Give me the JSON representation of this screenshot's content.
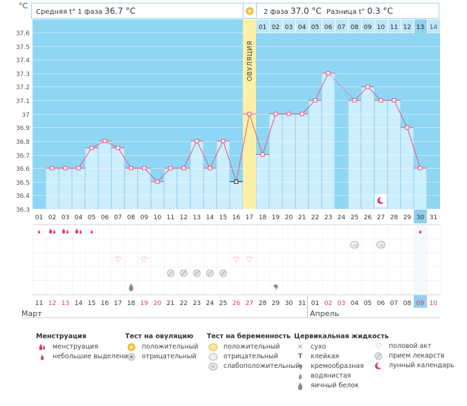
{
  "header": {
    "left_label": "Средняя t° 1 фаза",
    "left_value": "36.7 °C",
    "right_label": "2 фаза",
    "right_value": "37.0 °C",
    "diff_label": "Разница t°",
    "diff_value": "0.3 °C",
    "unit": "°C"
  },
  "ovulation_label": "ОВУЛЯЦИЯ",
  "colors": {
    "sky": "#8fd6f5",
    "bar": "#cdeefd",
    "bar_edge": "#a9dbf3",
    "ovulation": "#fbf0a6",
    "line": "#e0567f",
    "pink": "#e0356f",
    "selected": "#8fd0ee"
  },
  "chart_data": {
    "type": "line",
    "ylim": [
      36.3,
      37.6
    ],
    "yticks": [
      "37.6",
      "37.5",
      "37.4",
      "37.3",
      "37.2",
      "37.1",
      "37",
      "36.9",
      "36.8",
      "36.7",
      "36.6",
      "36.5",
      "36.4",
      "36.3"
    ],
    "cycle_days": [
      "01",
      "02",
      "03",
      "04",
      "05",
      "06",
      "07",
      "08",
      "09",
      "10",
      "11",
      "12",
      "13",
      "14",
      "15",
      "16",
      "17",
      "18",
      "19",
      "20",
      "21",
      "22",
      "23",
      "24",
      "25",
      "26",
      "27",
      "28",
      "29",
      "30",
      "31"
    ],
    "phase2_days": [
      "01",
      "02",
      "03",
      "04",
      "05",
      "06",
      "07",
      "08",
      "09",
      "10",
      "11",
      "12",
      "13",
      "14"
    ],
    "temperatures": [
      null,
      36.6,
      36.6,
      36.6,
      36.75,
      36.8,
      36.75,
      36.6,
      36.6,
      36.5,
      36.6,
      36.6,
      36.8,
      36.6,
      36.8,
      36.5,
      37.0,
      36.7,
      37.0,
      37.0,
      37.0,
      37.1,
      37.3,
      null,
      37.1,
      37.2,
      37.1,
      37.1,
      36.9,
      36.6,
      null
    ],
    "dashed_gap": [
      23,
      25
    ],
    "ovulation_day": 17,
    "selected_day": 30,
    "moon_day": 27,
    "calendar_dates": [
      "11",
      "12",
      "13",
      "14",
      "15",
      "16",
      "17",
      "18",
      "19",
      "20",
      "21",
      "22",
      "23",
      "24",
      "25",
      "26",
      "27",
      "28",
      "29",
      "30",
      "31",
      "01",
      "02",
      "03",
      "04",
      "05",
      "06",
      "07",
      "08",
      "09",
      "10"
    ],
    "red_dates": [
      1,
      2,
      8,
      9,
      15,
      16,
      22,
      23,
      29,
      30
    ],
    "month_start": "Март",
    "month_next": "Апрель",
    "menstruation": [
      1,
      2,
      3,
      4,
      5,
      30
    ],
    "menstruation_heavy": [
      2,
      3,
      4
    ],
    "pregnancy_neg": [
      25,
      27
    ],
    "intercourse": [
      7,
      9,
      16,
      17
    ],
    "pills": [
      11,
      12,
      13,
      14,
      15
    ],
    "mucus_egg": [
      8
    ],
    "mucus_creamy": [
      19
    ]
  },
  "legend": {
    "menstruation": {
      "title": "Менструация",
      "items": [
        "менструация",
        "небольшие выделения"
      ]
    },
    "ovulation_test": {
      "title": "Тест на овуляцию",
      "items": [
        "положительный",
        "отрицательный"
      ]
    },
    "pregnancy_test": {
      "title": "Тест на беременность",
      "items": [
        "положительный",
        "отрицательный",
        "слабоположительный"
      ]
    },
    "cervical": {
      "title": "Цервикальная жидкость",
      "items": [
        "сухо",
        "клейкая",
        "кремообразная",
        "водянистая",
        "яичный белок"
      ]
    },
    "other": {
      "items": [
        "половой акт",
        "прием лекарств",
        "лунный календарь"
      ]
    }
  }
}
